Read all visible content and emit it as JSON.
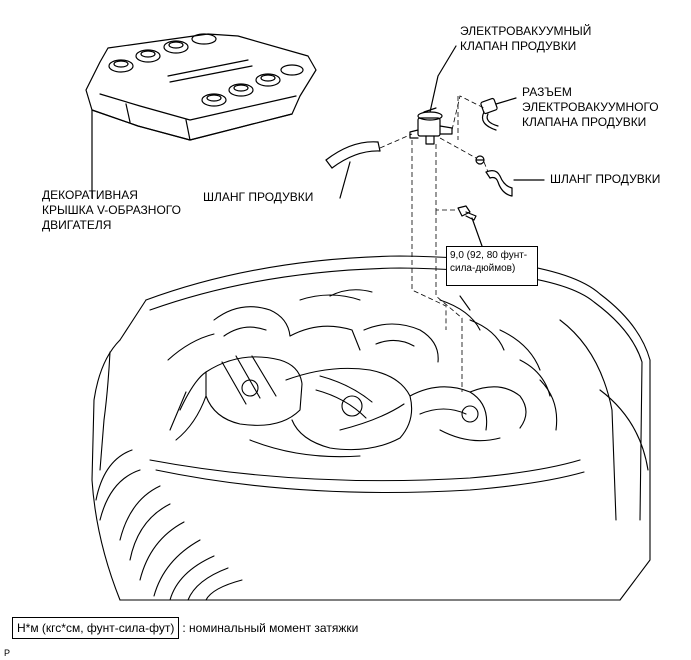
{
  "labels": {
    "vsv": [
      "ЭЛЕКТРОВАКУУМНЫЙ",
      "КЛАПАН ПРОДУВКИ"
    ],
    "connector": [
      "РАЗЪЕМ",
      "ЭЛЕКТРОВАКУУМНОГО",
      "КЛАПАНА ПРОДУВКИ"
    ],
    "hose_right": "ШЛАНГ ПРОДУВКИ",
    "hose_left": "ШЛАНГ ПРОДУВКИ",
    "cover": [
      "ДЕКОРАТИВНАЯ",
      "КРЫШКА V-ОБРАЗНОГО",
      "ДВИГАТЕЛЯ"
    ]
  },
  "torque": {
    "line1": "9,0 (92, 80 фунт-",
    "line2": "сила-дюймов)"
  },
  "legend": {
    "units": "Н*м (кгс*см, фунт-сила-фут)",
    "text": ": номинальный момент затяжки"
  },
  "figure_code": "P"
}
